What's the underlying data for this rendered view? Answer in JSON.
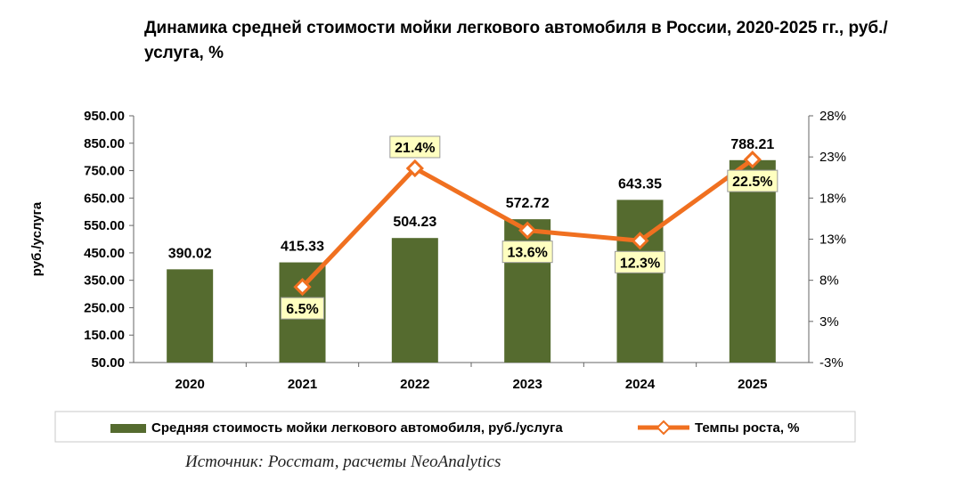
{
  "colors": {
    "bar": "#556B2F",
    "line": "#F07020",
    "label_bg": "#FFFFC0",
    "legend_border": "#C8C8C8"
  },
  "chart_data": {
    "type": "bar",
    "title": "Динамика средней стоимости мойки легкового автомобиля в России, 2020-2025 гг., руб./услуга, %",
    "categories": [
      "2020",
      "2021",
      "2022",
      "2023",
      "2024",
      "2025"
    ],
    "ylabel": "руб./услуга",
    "ylim": [
      50,
      950
    ],
    "y_ticks": [
      "950.00",
      "850.00",
      "750.00",
      "650.00",
      "550.00",
      "450.00",
      "350.00",
      "250.00",
      "150.00",
      "50.00"
    ],
    "y2lim": [
      -3,
      28
    ],
    "y2_ticks": [
      "28%",
      "23%",
      "18%",
      "13%",
      "8%",
      "3%",
      "-3%"
    ],
    "grid": false,
    "legend_position": "bottom",
    "series": [
      {
        "name": "Средняя стоимость мойки легкового автомобиля, руб./услуга",
        "type": "bar",
        "axis": "left",
        "values": [
          390.02,
          415.33,
          504.23,
          572.72,
          643.35,
          788.21
        ],
        "labels": [
          "390.02",
          "415.33",
          "504.23",
          "572.72",
          "643.35",
          "788.21"
        ]
      },
      {
        "name": "Темпы роста, %",
        "type": "line",
        "axis": "right",
        "x": [
          "2021",
          "2022",
          "2023",
          "2024",
          "2025"
        ],
        "values": [
          6.5,
          21.4,
          13.6,
          12.3,
          22.5
        ],
        "labels": [
          "6.5%",
          "21.4%",
          "13.6%",
          "12.3%",
          "22.5%"
        ]
      }
    ]
  },
  "source": "Источник: Росстат, расчеты NeoAnalytics"
}
